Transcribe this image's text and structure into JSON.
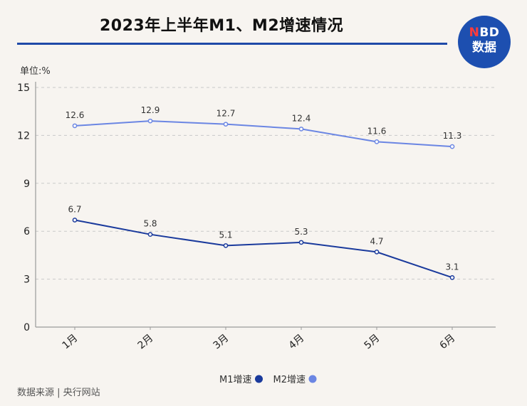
{
  "header": {
    "title": "2023年上半年M1、M2增速情况",
    "logo_line1": "NBD",
    "logo_line1_accent": "N",
    "logo_line2": "数据"
  },
  "footer": {
    "source": "数据来源 | 央行网站"
  },
  "colors": {
    "m1": "#1a3a9c",
    "m2": "#6b86e3",
    "grid": "#c9c9c9",
    "axis": "#9a9a9a"
  },
  "chart_data": {
    "type": "line",
    "unit_label": "单位:%",
    "categories": [
      "1月",
      "2月",
      "3月",
      "4月",
      "5月",
      "6月"
    ],
    "ylim": [
      0,
      15
    ],
    "yticks": [
      0,
      3,
      6,
      9,
      12,
      15
    ],
    "grid": true,
    "legend_position": "bottom-center",
    "series": [
      {
        "name": "M1增速",
        "values": [
          6.7,
          5.8,
          5.1,
          5.3,
          4.7,
          3.1
        ]
      },
      {
        "name": "M2增速",
        "values": [
          12.6,
          12.9,
          12.7,
          12.4,
          11.6,
          11.3
        ]
      }
    ]
  }
}
